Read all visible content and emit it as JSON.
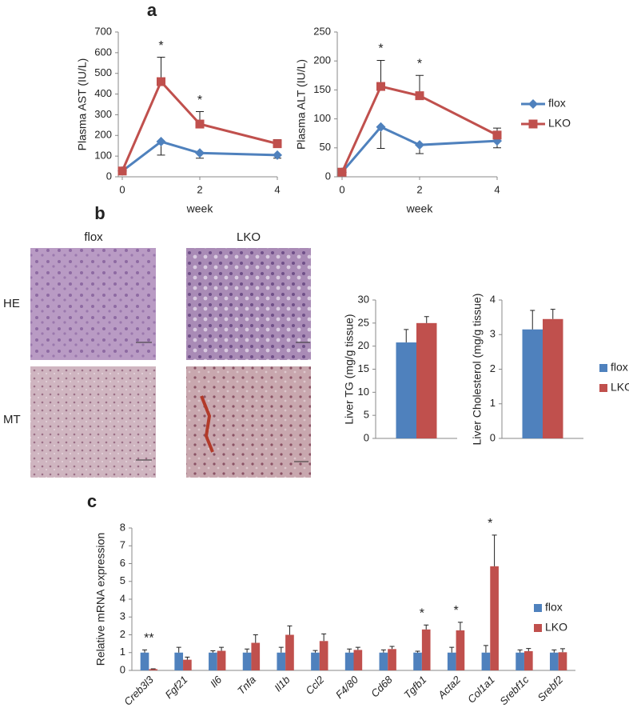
{
  "panel_labels": [
    "a",
    "b",
    "c"
  ],
  "histology": {
    "columns": [
      "flox",
      "LKO"
    ],
    "rows": [
      "HE",
      "MT"
    ]
  },
  "chart_data": [
    {
      "type": "line",
      "y_label": "Plasma AST (IU/L)",
      "x_label": "week",
      "x": [
        0,
        1,
        2,
        4
      ],
      "xlim": [
        0,
        4
      ],
      "xticks": [
        0,
        2,
        4
      ],
      "ylim": [
        0,
        700
      ],
      "yticks": [
        0,
        100,
        200,
        300,
        400,
        500,
        600,
        700
      ],
      "series": [
        {
          "color": "#4f81bd",
          "marker": "diamond",
          "values": [
            28,
            170,
            115,
            105
          ],
          "errors": [
            5,
            65,
            25,
            15
          ]
        },
        {
          "color": "#c0504d",
          "marker": "square",
          "values": [
            28,
            460,
            255,
            160
          ],
          "errors": [
            5,
            118,
            60,
            20
          ]
        }
      ],
      "annotations": [
        null,
        "*",
        "*",
        null
      ]
    },
    {
      "type": "line",
      "y_label": "Plasma ALT (IU/L)",
      "x_label": "week",
      "x": [
        0,
        1,
        2,
        4
      ],
      "xlim": [
        0,
        4
      ],
      "xticks": [
        0,
        2,
        4
      ],
      "ylim": [
        0,
        250
      ],
      "yticks": [
        0,
        50,
        100,
        150,
        200,
        250
      ],
      "series": [
        {
          "name": "flox",
          "color": "#4f81bd",
          "marker": "diamond",
          "values": [
            8,
            86,
            55,
            62
          ],
          "errors": [
            3,
            37,
            15,
            12
          ]
        },
        {
          "name": "LKO",
          "color": "#c0504d",
          "marker": "square",
          "values": [
            8,
            156,
            140,
            72
          ],
          "errors": [
            3,
            45,
            35,
            12
          ]
        }
      ],
      "annotations": [
        null,
        "*",
        "*",
        null
      ]
    },
    {
      "type": "bar",
      "y_label": "Liver TG (mg/g tissue)",
      "categories": [
        null
      ],
      "ylim": [
        0,
        30
      ],
      "yticks": [
        0,
        5,
        10,
        15,
        20,
        25,
        30
      ],
      "series": [
        {
          "color": "#4f81bd",
          "values": [
            20.8
          ],
          "errors": [
            2.8
          ]
        },
        {
          "color": "#c0504d",
          "values": [
            25
          ],
          "errors": [
            1.4
          ]
        }
      ]
    },
    {
      "type": "bar",
      "y_label": "Liver Cholesterol (mg/g tissue)",
      "categories": [
        null
      ],
      "ylim": [
        0,
        4
      ],
      "yticks": [
        0,
        1,
        2,
        3,
        4
      ],
      "series": [
        {
          "name": "flox",
          "color": "#4f81bd",
          "values": [
            3.15
          ],
          "errors": [
            0.55
          ]
        },
        {
          "name": "LKO",
          "color": "#c0504d",
          "values": [
            3.45
          ],
          "errors": [
            0.28
          ]
        }
      ]
    },
    {
      "type": "bar",
      "y_label": "Relative mRNA expression",
      "categories": [
        "Creb3l3",
        "Fgf21",
        "Il6",
        "Tnfa",
        "Il1b",
        "Ccl2",
        "F4/80",
        "Cd68",
        "Tgfb1",
        "Acta2",
        "Col1a1",
        "Srebf1c",
        "Srebf2"
      ],
      "ylim": [
        0,
        8
      ],
      "yticks": [
        0,
        1,
        2,
        3,
        4,
        5,
        6,
        7,
        8
      ],
      "series": [
        {
          "name": "flox",
          "color": "#4f81bd",
          "values": [
            1,
            1,
            1,
            1,
            1,
            1,
            1,
            1,
            1,
            1,
            1,
            1,
            1
          ],
          "errors": [
            0.15,
            0.3,
            0.1,
            0.2,
            0.3,
            0.12,
            0.2,
            0.15,
            0.08,
            0.3,
            0.4,
            0.15,
            0.15
          ]
        },
        {
          "name": "LKO",
          "color": "#c0504d",
          "values": [
            0.07,
            0.6,
            1.1,
            1.55,
            2.0,
            1.65,
            1.15,
            1.2,
            2.3,
            2.25,
            5.85,
            1.08,
            1.02
          ],
          "errors": [
            0.02,
            0.15,
            0.2,
            0.45,
            0.5,
            0.4,
            0.15,
            0.15,
            0.25,
            0.45,
            1.75,
            0.15,
            0.2
          ]
        }
      ],
      "annotations": [
        "**",
        null,
        null,
        null,
        null,
        null,
        null,
        null,
        "*",
        "*",
        "*",
        null,
        null
      ]
    }
  ]
}
